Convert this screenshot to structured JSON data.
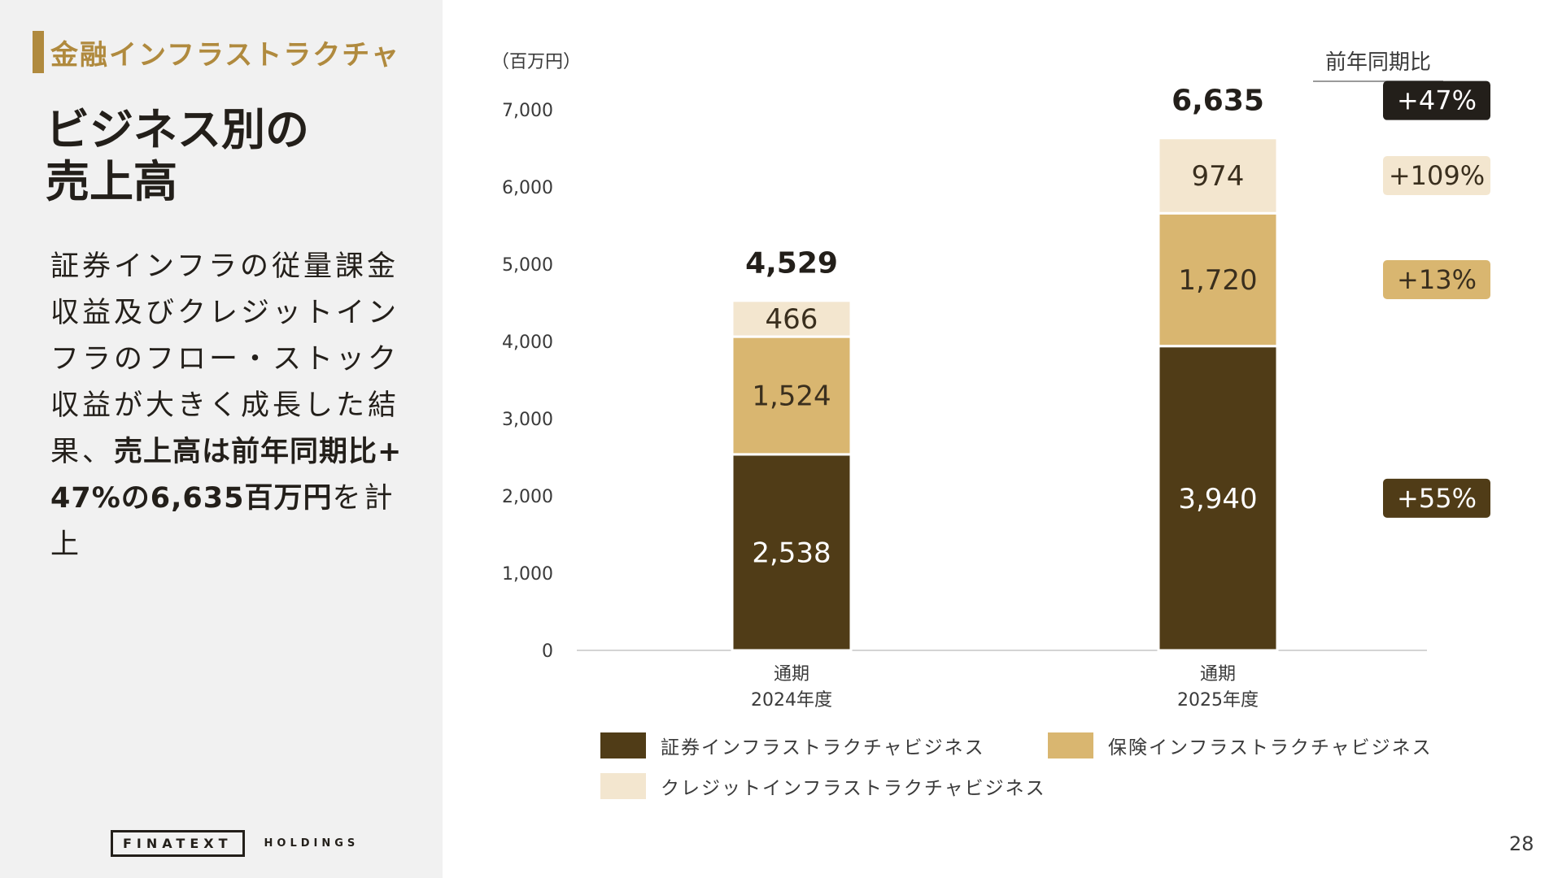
{
  "section": {
    "label": "金融インフラストラクチャ"
  },
  "title": {
    "line1": "ビジネス別の",
    "line2": "売上高"
  },
  "body": {
    "text_pre": "証券インフラの従量課金収益及びクレジットインフラのフロー・ストック収益が大きく成長した結果、",
    "text_bold": "売上高は前年同期比+47%の6,635百万円",
    "text_post": "を計上"
  },
  "logo": {
    "main": "FINATEXT",
    "sub": "HOLDINGS"
  },
  "page_number": "28",
  "colors": {
    "securities": "#503c17",
    "insurance": "#d9b670",
    "credit": "#f3e6cf",
    "accent": "#b08a3e",
    "total_badge": "#231f1a"
  },
  "chart_data": {
    "type": "bar",
    "stacked": true,
    "unit_label": "（百万円）",
    "yoy_header": "前年同期比",
    "ylim": [
      0,
      7000
    ],
    "yticks": [
      "0",
      "1,000",
      "2,000",
      "3,000",
      "4,000",
      "5,000",
      "6,000",
      "7,000"
    ],
    "categories": [
      {
        "line1": "通期",
        "line2": "2024年度"
      },
      {
        "line1": "通期",
        "line2": "2025年度"
      }
    ],
    "series": [
      {
        "name": "証券インフラストラクチャビジネス",
        "values": [
          2538,
          3940
        ],
        "labels": [
          "2,538",
          "3,940"
        ],
        "color": "#503c17",
        "label_color": "#ffffff",
        "yoy": "+55%",
        "yoy_text_color": "#ffffff"
      },
      {
        "name": "保険インフラストラクチャビジネス",
        "values": [
          1524,
          1720
        ],
        "labels": [
          "1,524",
          "1,720"
        ],
        "color": "#d9b670",
        "label_color": "#3a2f1e",
        "yoy": "+13%",
        "yoy_text_color": "#3a2f1e"
      },
      {
        "name": "クレジットインフラストラクチャビジネス",
        "values": [
          466,
          974
        ],
        "labels": [
          "466",
          "974"
        ],
        "color": "#f3e6cf",
        "label_color": "#3a2f1e",
        "yoy": "+109%",
        "yoy_text_color": "#3a2f1e"
      }
    ],
    "totals": {
      "values": [
        4529,
        6635
      ],
      "labels": [
        "4,529",
        "6,635"
      ]
    },
    "total_yoy": "+47%"
  }
}
